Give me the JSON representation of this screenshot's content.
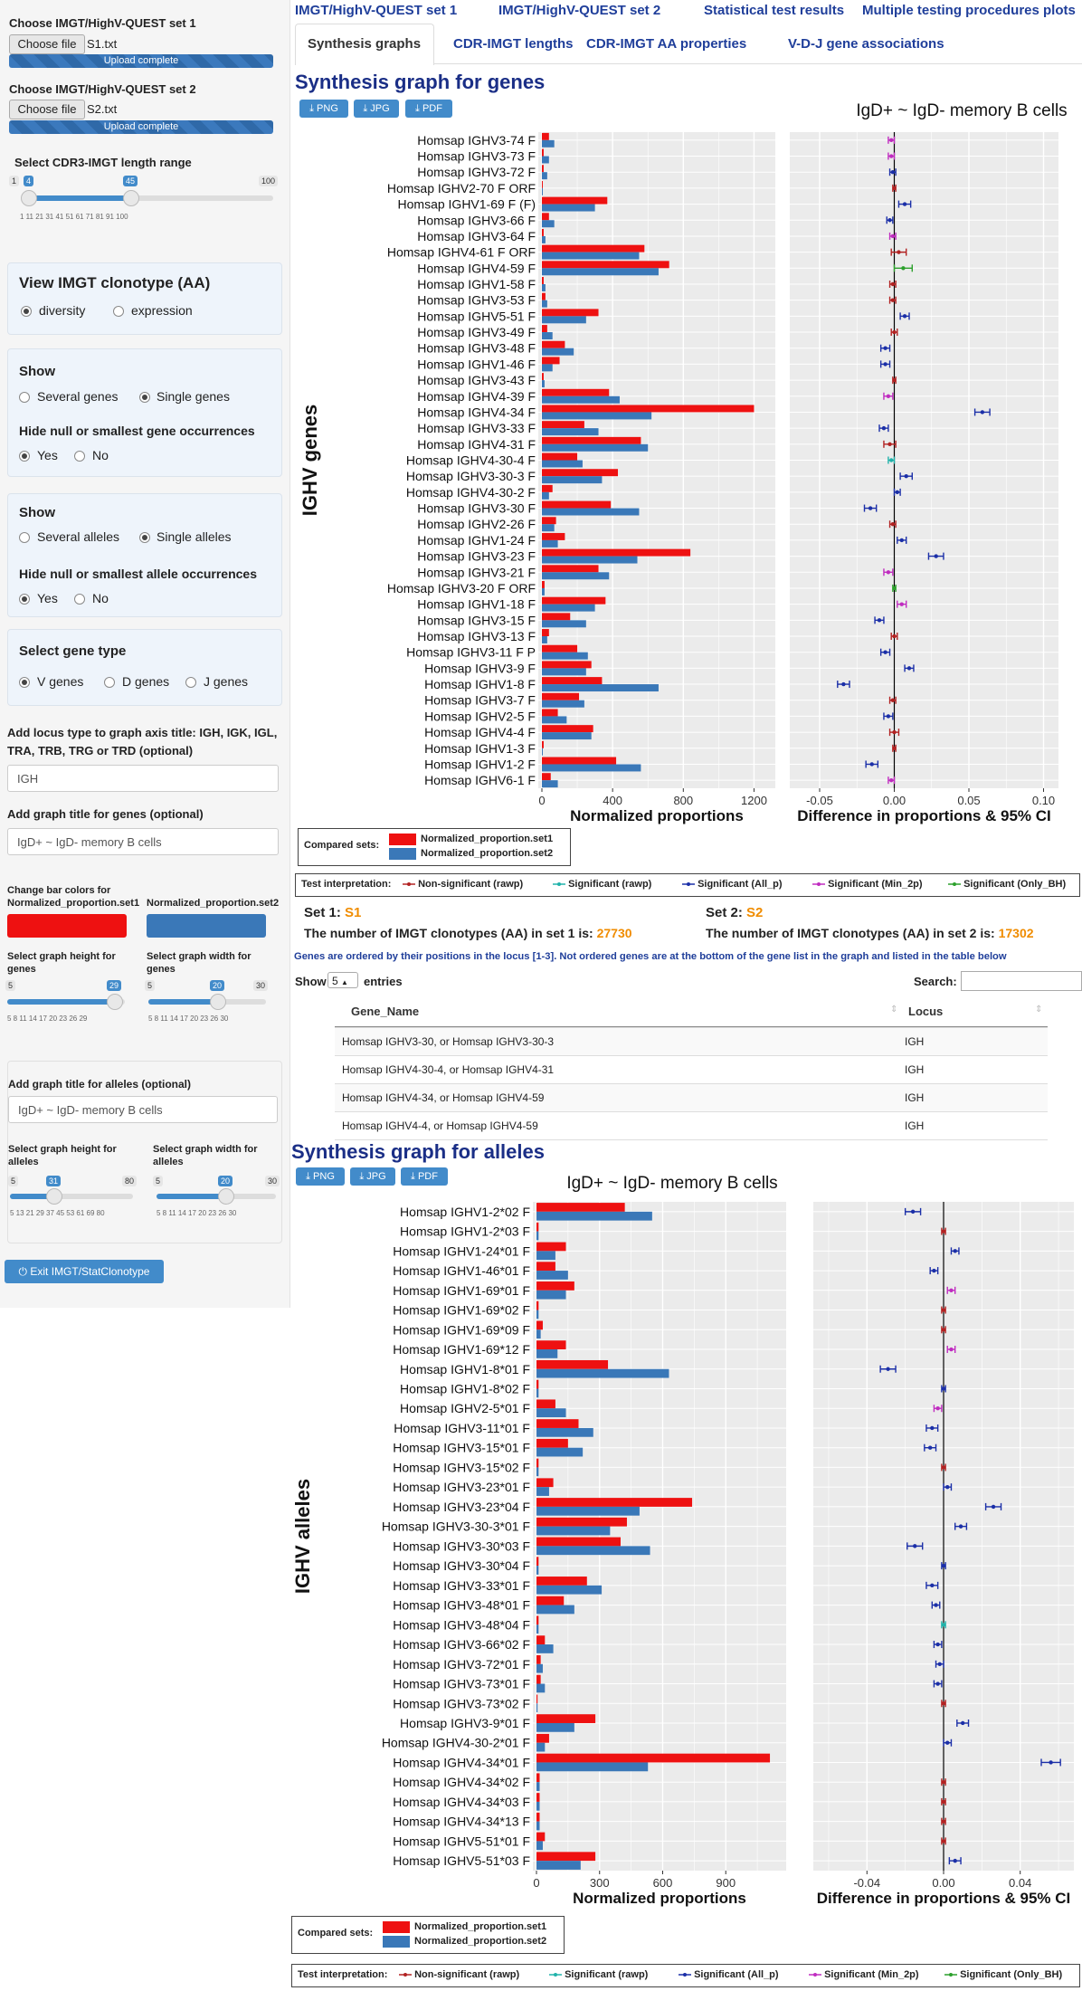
{
  "sidebar": {
    "set1_label": "Choose IMGT/HighV-QUEST set 1",
    "choose_file": "Choose file",
    "set1_file": "S1.txt",
    "upload_complete": "Upload complete",
    "set2_label": "Choose IMGT/HighV-QUEST set 2",
    "set2_file": "S2.txt",
    "cdr3_label": "Select CDR3-IMGT length range",
    "cdr3_min": "1",
    "cdr3_low": "4",
    "cdr3_high": "45",
    "cdr3_max": "100",
    "cdr3_ticks": "1      11      21      31      41      51      61      71      81      91      100",
    "view_label": "View IMGT clonotype (AA)",
    "diversity": "diversity",
    "expression": "expression",
    "show1": "Show",
    "several_genes": "Several genes",
    "single_genes": "Single genes",
    "hide_gene": "Hide null or smallest gene occurrences",
    "yes": "Yes",
    "no": "No",
    "show2": "Show",
    "several_alleles": "Several alleles",
    "single_alleles": "Single alleles",
    "hide_allele": "Hide null or smallest allele occurrences",
    "gene_type": "Select gene type",
    "v_genes": "V genes",
    "d_genes": "D genes",
    "j_genes": "J genes",
    "locus_label": "Add locus type to graph axis title: IGH, IGK, IGL, TRA, TRB, TRG or TRD (optional)",
    "locus_value": "IGH",
    "title_genes_label": "Add graph title for genes (optional)",
    "title_genes_value": "IgD+ ~ IgD- memory B cells",
    "color1_label": "Change bar colors for Normalized_proportion.set1",
    "color2_label": "Normalized_proportion.set2",
    "height_genes_label": "Select graph height for genes",
    "width_genes_label": "Select graph width for genes",
    "hg_min": "5",
    "hg_val": "29",
    "hg_ticks": "5  8  11  14  17  20  23  26  29",
    "wg_min": "5",
    "wg_val": "20",
    "wg_max": "30",
    "wg_ticks": "5  8  11  14  17  20  23  26  30",
    "title_alleles_label": "Add graph title for alleles (optional)",
    "title_alleles_value": "IgD+ ~ IgD- memory B cells",
    "height_alleles_label": "Select graph height for alleles",
    "width_alleles_label": "Select graph width for alleles",
    "ha_min": "5",
    "ha_val": "31",
    "ha_max": "80",
    "ha_ticks": "5  13 21 29 37 45 53 61 69 80",
    "wa_min": "5",
    "wa_val": "20",
    "wa_max": "30",
    "wa_ticks": "5  8  11  14  17  20  23  26  30",
    "exit": "Exit IMGT/StatClonotype",
    "color1": "#ee1111",
    "color2": "#3a78b8"
  },
  "nav": {
    "set1": "IMGT/HighV-QUEST set 1",
    "set2": "IMGT/HighV-QUEST set 2",
    "stat": "Statistical test results",
    "mtp": "Multiple testing procedures plots",
    "tabs": [
      "Synthesis graphs",
      "CDR-IMGT lengths",
      "CDR-IMGT AA properties",
      "V-D-J gene associations"
    ]
  },
  "genes_section": {
    "title": "Synthesis graph for genes",
    "png": "PNG",
    "jpg": "JPG",
    "pdf": "PDF",
    "compared_sets": "Compared sets:",
    "legend_set1": "Normalized_proportion.set1",
    "legend_set2": "Normalized_proportion.set2",
    "test_interp": "Test interpretation:",
    "interp": [
      "Non-significant (rawp)",
      "Significant (rawp)",
      "Significant (All_p)",
      "Significant (Min_2p)",
      "Significant (Only_BH)"
    ],
    "set1_label": "Set 1: ",
    "set1_name": "S1",
    "set2_label": "Set 2: ",
    "set2_name": "S2",
    "count1_text": "The number of IMGT clonotypes (AA) in set 1 is: ",
    "count1": "27730",
    "count2_text": "The number of IMGT clonotypes (AA) in set 2 is: ",
    "count2": "17302",
    "note": "Genes are ordered by their positions in the locus [1-3]. Not ordered genes are at the bottom of the gene list in the graph and listed in the table below",
    "show": "Show",
    "entries_val": "5",
    "entries": "entries",
    "search": "Search:",
    "table_headers": [
      "Gene_Name",
      "Locus"
    ],
    "table_rows": [
      [
        "Homsap IGHV3-30, or Homsap IGHV3-30-3",
        "IGH"
      ],
      [
        "Homsap IGHV4-30-4, or Homsap IGHV4-31",
        "IGH"
      ],
      [
        "Homsap IGHV4-34, or Homsap IGHV4-59",
        "IGH"
      ],
      [
        "Homsap IGHV4-4, or Homsap IGHV4-59",
        "IGH"
      ]
    ]
  },
  "alleles_section": {
    "title": "Synthesis graph for alleles",
    "png": "PNG",
    "jpg": "JPG",
    "pdf": "PDF",
    "compared_sets": "Compared sets:",
    "legend_set1": "Normalized_proportion.set1",
    "legend_set2": "Normalized_proportion.set2",
    "test_interp": "Test interpretation:",
    "interp": [
      "Non-significant (rawp)",
      "Significant (rawp)",
      "Significant (All_p)",
      "Significant (Min_2p)",
      "Significant (Only_BH)"
    ]
  },
  "colors": {
    "interp": [
      "#b22222",
      "#20b2aa",
      "#1b2fa8",
      "#c02cc0",
      "#2ca02c"
    ]
  },
  "chart_data": [
    {
      "type": "bar",
      "title": "IgD+ ~ IgD- memory B cells",
      "xlabel": "Normalized proportions",
      "ylabel": "IGHV genes",
      "xlim": [
        0,
        1300
      ],
      "xticks": [
        0,
        400,
        800,
        1200
      ],
      "categories": [
        "Homsap IGHV3-74 F",
        "Homsap IGHV3-73 F",
        "Homsap IGHV3-72 F",
        "Homsap IGHV2-70 F ORF",
        "Homsap IGHV1-69 F (F)",
        "Homsap IGHV3-66 F",
        "Homsap IGHV3-64 F",
        "Homsap IGHV4-61 F ORF",
        "Homsap IGHV4-59 F",
        "Homsap IGHV1-58 F",
        "Homsap IGHV3-53 F",
        "Homsap IGHV5-51 F",
        "Homsap IGHV3-49 F",
        "Homsap IGHV3-48 F",
        "Homsap IGHV1-46 F",
        "Homsap IGHV3-43 F",
        "Homsap IGHV4-39 F",
        "Homsap IGHV4-34 F",
        "Homsap IGHV3-33 F",
        "Homsap IGHV4-31 F",
        "Homsap IGHV4-30-4 F",
        "Homsap IGHV3-30-3 F",
        "Homsap IGHV4-30-2 F",
        "Homsap IGHV3-30 F",
        "Homsap IGHV2-26 F",
        "Homsap IGHV1-24 F",
        "Homsap IGHV3-23 F",
        "Homsap IGHV3-21 F",
        "Homsap IGHV3-20 F ORF",
        "Homsap IGHV1-18 F",
        "Homsap IGHV3-15 F",
        "Homsap IGHV3-13 F",
        "Homsap IGHV3-11 F P",
        "Homsap IGHV3-9 F",
        "Homsap IGHV1-8 F",
        "Homsap IGHV3-7 F",
        "Homsap IGHV2-5 F",
        "Homsap IGHV4-4 F",
        "Homsap IGHV1-3 F",
        "Homsap IGHV1-2 F",
        "Homsap IGHV6-1 F"
      ],
      "series": [
        {
          "name": "Normalized_proportion.set1",
          "values": [
            40,
            10,
            10,
            5,
            370,
            40,
            10,
            580,
            720,
            10,
            20,
            320,
            30,
            130,
            100,
            10,
            380,
            1200,
            240,
            560,
            200,
            430,
            60,
            390,
            80,
            130,
            840,
            320,
            15,
            360,
            160,
            40,
            200,
            280,
            340,
            210,
            90,
            290,
            10,
            420,
            50
          ]
        },
        {
          "name": "Normalized_proportion.set2",
          "values": [
            70,
            40,
            30,
            5,
            300,
            70,
            20,
            550,
            660,
            20,
            30,
            250,
            60,
            180,
            60,
            15,
            440,
            620,
            320,
            600,
            230,
            340,
            40,
            550,
            70,
            90,
            540,
            380,
            15,
            300,
            250,
            30,
            260,
            250,
            660,
            240,
            140,
            280,
            5,
            560,
            90
          ]
        }
      ],
      "diff": {
        "xlabel": "Difference in proportions & 95% CI",
        "xlim": [
          -0.07,
          0.11
        ],
        "xticks": [
          -0.05,
          0.0,
          0.05,
          0.1
        ],
        "tick_labels": [
          "-0.05",
          "0.00",
          "0.05",
          "0.10"
        ],
        "values": [
          -0.002,
          -0.002,
          -0.001,
          0.0,
          0.007,
          -0.003,
          -0.001,
          0.003,
          0.006,
          -0.001,
          -0.001,
          0.007,
          0.0,
          -0.006,
          -0.006,
          0.0,
          -0.004,
          0.059,
          -0.007,
          -0.003,
          -0.002,
          0.008,
          0.002,
          -0.016,
          -0.001,
          0.005,
          0.028,
          -0.004,
          0.0,
          0.005,
          -0.01,
          0.0,
          -0.006,
          0.01,
          -0.034,
          -0.001,
          -0.004,
          0.0,
          0.0,
          -0.015,
          -0.002
        ],
        "err": [
          0.002,
          0.002,
          0.002,
          0.001,
          0.004,
          0.002,
          0.002,
          0.005,
          0.006,
          0.002,
          0.002,
          0.003,
          0.002,
          0.003,
          0.003,
          0.001,
          0.003,
          0.005,
          0.003,
          0.004,
          0.002,
          0.004,
          0.002,
          0.004,
          0.002,
          0.003,
          0.005,
          0.003,
          0.001,
          0.003,
          0.003,
          0.002,
          0.003,
          0.003,
          0.004,
          0.002,
          0.003,
          0.003,
          0.001,
          0.004,
          0.002
        ],
        "sig": [
          3,
          3,
          2,
          0,
          2,
          2,
          3,
          0,
          4,
          0,
          0,
          2,
          0,
          2,
          2,
          0,
          3,
          2,
          2,
          0,
          1,
          2,
          2,
          2,
          0,
          2,
          2,
          3,
          4,
          3,
          2,
          0,
          2,
          2,
          2,
          0,
          2,
          0,
          0,
          2,
          3
        ]
      }
    },
    {
      "type": "bar",
      "title": "IgD+ ~ IgD- memory B cells",
      "xlabel": "Normalized proportions",
      "ylabel": "IGHV alleles",
      "xlim": [
        0,
        1170
      ],
      "xticks": [
        0,
        300,
        600,
        900
      ],
      "categories": [
        "Homsap IGHV1-2*02 F",
        "Homsap IGHV1-2*03 F",
        "Homsap IGHV1-24*01 F",
        "Homsap IGHV1-46*01 F",
        "Homsap IGHV1-69*01 F",
        "Homsap IGHV1-69*02 F",
        "Homsap IGHV1-69*09 F",
        "Homsap IGHV1-69*12 F",
        "Homsap IGHV1-8*01 F",
        "Homsap IGHV1-8*02 F",
        "Homsap IGHV2-5*01 F",
        "Homsap IGHV3-11*01 F",
        "Homsap IGHV3-15*01 F",
        "Homsap IGHV3-15*02 F",
        "Homsap IGHV3-23*01 F",
        "Homsap IGHV3-23*04 F",
        "Homsap IGHV3-30-3*01 F",
        "Homsap IGHV3-30*03 F",
        "Homsap IGHV3-30*04 F",
        "Homsap IGHV3-33*01 F",
        "Homsap IGHV3-48*01 F",
        "Homsap IGHV3-48*04 F",
        "Homsap IGHV3-66*02 F",
        "Homsap IGHV3-72*01 F",
        "Homsap IGHV3-73*01 F",
        "Homsap IGHV3-73*02 F",
        "Homsap IGHV3-9*01 F",
        "Homsap IGHV4-30-2*01 F",
        "Homsap IGHV4-34*01 F",
        "Homsap IGHV4-34*02 F",
        "Homsap IGHV4-34*03 F",
        "Homsap IGHV4-34*13 F",
        "Homsap IGHV5-51*01 F",
        "Homsap IGHV5-51*03 F"
      ],
      "series": [
        {
          "name": "Normalized_proportion.set1",
          "values": [
            420,
            10,
            140,
            90,
            180,
            10,
            30,
            140,
            340,
            10,
            90,
            200,
            150,
            10,
            80,
            740,
            430,
            400,
            10,
            240,
            130,
            10,
            40,
            20,
            20,
            5,
            280,
            60,
            1110,
            15,
            15,
            15,
            40,
            280
          ]
        },
        {
          "name": "Normalized_proportion.set2",
          "values": [
            550,
            10,
            90,
            150,
            140,
            10,
            20,
            100,
            630,
            10,
            140,
            270,
            220,
            10,
            60,
            490,
            350,
            540,
            10,
            310,
            180,
            10,
            80,
            30,
            40,
            5,
            180,
            40,
            530,
            15,
            15,
            15,
            30,
            210
          ]
        }
      ],
      "diff": {
        "xlabel": "Difference in proportions & 95% CI",
        "xlim": [
          -0.068,
          0.068
        ],
        "xticks": [
          -0.04,
          0.0,
          0.04
        ],
        "tick_labels": [
          "-0.04",
          "0.00",
          "0.04"
        ],
        "values": [
          -0.016,
          0.0,
          0.006,
          -0.005,
          0.004,
          0.0,
          0.0,
          0.004,
          -0.029,
          0.0,
          -0.003,
          -0.006,
          -0.007,
          0.0,
          0.002,
          0.026,
          0.009,
          -0.015,
          0.0,
          -0.006,
          -0.004,
          0.0,
          -0.003,
          -0.002,
          -0.003,
          0.0,
          0.01,
          0.002,
          0.056,
          0.0,
          0.0,
          0.0,
          0.0,
          0.006
        ],
        "err": [
          0.004,
          0.001,
          0.002,
          0.002,
          0.002,
          0.001,
          0.001,
          0.002,
          0.004,
          0.001,
          0.002,
          0.003,
          0.003,
          0.001,
          0.002,
          0.004,
          0.003,
          0.004,
          0.001,
          0.003,
          0.002,
          0.001,
          0.002,
          0.002,
          0.002,
          0.001,
          0.003,
          0.002,
          0.005,
          0.001,
          0.001,
          0.001,
          0.001,
          0.003
        ],
        "sig": [
          2,
          0,
          2,
          2,
          3,
          0,
          0,
          3,
          2,
          2,
          3,
          2,
          2,
          0,
          2,
          2,
          2,
          2,
          2,
          2,
          2,
          1,
          2,
          2,
          2,
          0,
          2,
          2,
          2,
          0,
          0,
          0,
          0,
          2
        ]
      }
    }
  ]
}
